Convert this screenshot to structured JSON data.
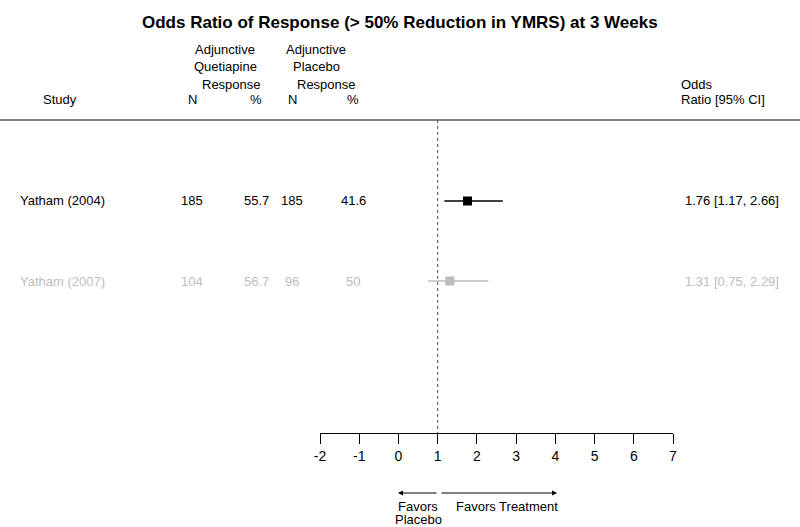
{
  "chart_data": {
    "type": "forest",
    "title": "Odds Ratio of Response (> 50% Reduction in YMRS) at 3 Weeks",
    "columns": {
      "study": "Study",
      "treatment": {
        "group": [
          "Adjunctive",
          "Quetiapine"
        ],
        "measure": "Response",
        "n": "N",
        "pct": "%"
      },
      "placebo": {
        "group": [
          "Adjunctive",
          "Placebo"
        ],
        "measure": "Response",
        "n": "N",
        "pct": "%"
      },
      "effect": [
        "Odds",
        "Ratio [95% CI]"
      ]
    },
    "studies": [
      {
        "name": "Yatham (2004)",
        "treatment_n": 185,
        "treatment_pct": 55.7,
        "placebo_n": 185,
        "placebo_pct": 41.6,
        "odds_ratio": 1.76,
        "ci_lower": 1.17,
        "ci_upper": 2.66,
        "ci_label": "1.76 [1.17, 2.66]",
        "color": "#000000"
      },
      {
        "name": "Yatham (2007)",
        "treatment_n": 104,
        "treatment_pct": 56.7,
        "placebo_n": 96,
        "placebo_pct": 50,
        "odds_ratio": 1.31,
        "ci_lower": 0.75,
        "ci_upper": 2.29,
        "ci_label": "1.31 [0.75, 2.29]",
        "color": "#bdbdbd"
      }
    ],
    "reference_line": 1,
    "xlim": [
      -2,
      7
    ],
    "xticks": [
      -2,
      -1,
      0,
      1,
      2,
      3,
      4,
      5,
      6,
      7
    ],
    "direction_labels": {
      "left": [
        "Favors",
        "Placebo"
      ],
      "right": [
        "Favors Treatment"
      ]
    }
  }
}
